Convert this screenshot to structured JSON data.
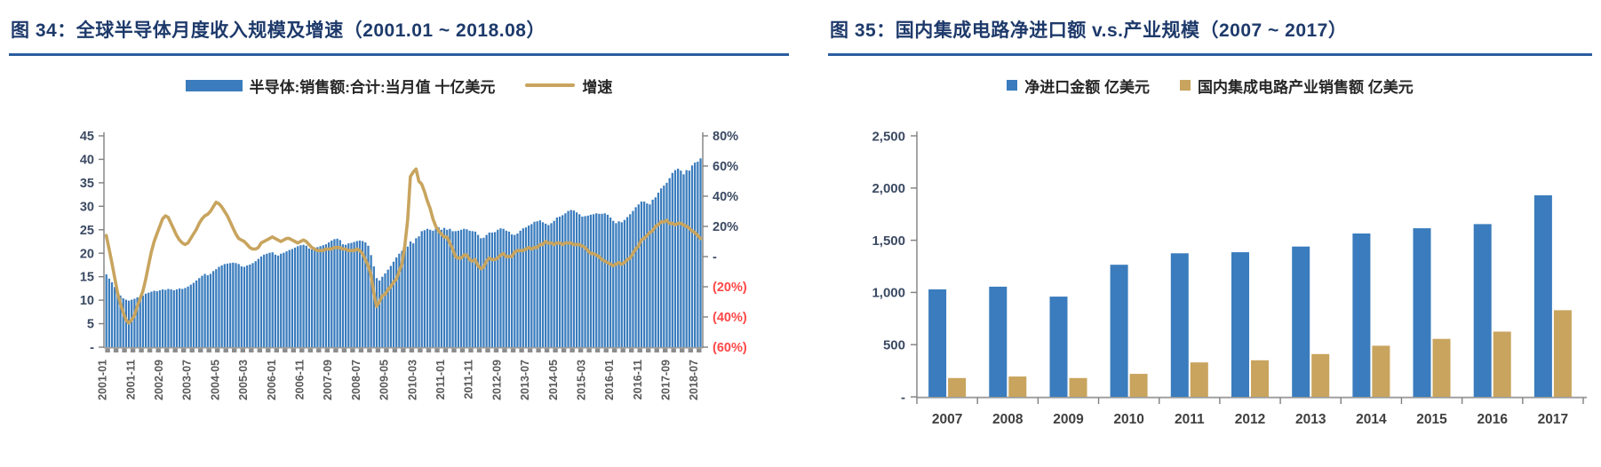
{
  "colors": {
    "title_navy": "#1E3A6B",
    "underline_blue": "#2A5DA0",
    "bar_blue": "#3A7CBD",
    "line_tan": "#C8A45E",
    "axis_gray": "#7F7F7F",
    "tick_label_gray": "#595959",
    "value_label_navy": "#3B4A63",
    "negative_red": "#FF4747",
    "legend_text": "#262626"
  },
  "chart_data": [
    {
      "type": "combo-bar-line",
      "title": "图 34：全球半导体月度收入规模及增速（2001.01 ~ 2018.08）",
      "x_start": "2001-01",
      "x_end": "2018-08",
      "x_tick_interval_months": 10,
      "x_tick_labels": [
        "2001-01",
        "2001-11",
        "2002-09",
        "2003-07",
        "2004-05",
        "2005-03",
        "2006-01",
        "2006-11",
        "2007-09",
        "2008-07",
        "2009-05",
        "2010-03",
        "2011-01",
        "2011-11",
        "2012-09",
        "2013-07",
        "2014-05",
        "2015-03",
        "2016-01",
        "2016-11",
        "2017-09",
        "2018-07"
      ],
      "left_axis": {
        "title": "",
        "min": 0,
        "max": 45,
        "tick_step": 5,
        "tick_labels": [
          "45",
          "40",
          "35",
          "30",
          "25",
          "20",
          "15",
          "10",
          "5",
          "-"
        ]
      },
      "right_axis": {
        "title": "",
        "min": -60,
        "max": 80,
        "tick_step": 20,
        "tick_labels": [
          "80%",
          "60%",
          "40%",
          "20%",
          "-",
          "(20%)",
          "(40%)",
          "(60%)"
        ]
      },
      "series": [
        {
          "name": "半导体:销售额:合计:当月值 十亿美元",
          "type": "bar",
          "axis": "left",
          "color": "#3A7CBD",
          "values": [
            15.5,
            14.6,
            13.8,
            12.8,
            11.8,
            11.0,
            10.4,
            10.1,
            9.9,
            10.1,
            10.3,
            10.6,
            10.8,
            11.0,
            11.4,
            11.6,
            11.8,
            12.0,
            11.9,
            12.1,
            12.3,
            12.2,
            12.4,
            12.3,
            12.1,
            12.3,
            12.5,
            12.4,
            12.6,
            12.9,
            13.3,
            13.7,
            14.2,
            14.7,
            15.2,
            15.6,
            15.3,
            15.6,
            16.2,
            16.6,
            17.1,
            17.4,
            17.7,
            17.8,
            17.9,
            18.0,
            17.9,
            17.7,
            17.2,
            17.1,
            17.4,
            17.6,
            17.9,
            18.3,
            18.8,
            19.3,
            19.7,
            19.9,
            20.1,
            20.2,
            19.7,
            19.5,
            19.9,
            20.1,
            20.4,
            20.7,
            20.9,
            21.2,
            21.5,
            21.7,
            21.8,
            21.6,
            21.0,
            20.8,
            21.2,
            21.3,
            21.5,
            21.7,
            21.9,
            22.3,
            22.7,
            23.0,
            23.1,
            22.8,
            21.9,
            21.8,
            22.1,
            22.2,
            22.4,
            22.6,
            22.7,
            22.6,
            22.3,
            21.6,
            19.6,
            17.2,
            14.7,
            14.2,
            15.0,
            15.7,
            16.5,
            17.3,
            18.2,
            19.1,
            19.9,
            20.5,
            21.0,
            21.4,
            22.5,
            22.1,
            23.2,
            23.6,
            24.7,
            24.9,
            25.2,
            25.0,
            24.8,
            25.2,
            25.5,
            25.0,
            25.4,
            25.0,
            25.2,
            24.7,
            24.7,
            24.8,
            25.0,
            25.2,
            25.1,
            24.8,
            24.7,
            24.6,
            23.9,
            23.2,
            23.3,
            23.9,
            24.4,
            24.4,
            24.5,
            25.0,
            25.3,
            25.2,
            24.8,
            24.6,
            24.0,
            23.9,
            24.2,
            24.8,
            25.3,
            25.5,
            25.9,
            26.2,
            26.7,
            26.8,
            27.0,
            26.6,
            26.3,
            26.0,
            26.4,
            26.9,
            27.6,
            27.8,
            28.1,
            28.5,
            29.0,
            29.2,
            29.1,
            28.7,
            28.3,
            27.8,
            27.9,
            28.0,
            28.2,
            28.3,
            28.5,
            28.4,
            28.4,
            28.5,
            28.2,
            27.6,
            26.9,
            26.4,
            26.8,
            26.6,
            27.1,
            27.7,
            28.3,
            29.0,
            29.8,
            30.4,
            31.0,
            31.0,
            30.6,
            30.4,
            31.4,
            31.9,
            32.9,
            33.8,
            34.4,
            35.0,
            36.0,
            37.1,
            37.7,
            38.0,
            37.6,
            36.8,
            37.7,
            37.6,
            38.7,
            39.3,
            39.5,
            40.2
          ]
        },
        {
          "name": "增速",
          "type": "line",
          "axis": "right",
          "color": "#C8A45E",
          "unit": "%",
          "values": [
            14,
            5,
            -4,
            -14,
            -24,
            -31,
            -37,
            -42,
            -44,
            -42,
            -39,
            -33,
            -28,
            -23,
            -15,
            -6,
            3,
            10,
            15,
            20,
            25,
            27,
            26,
            22,
            18,
            14,
            11,
            9,
            8,
            9,
            12,
            15,
            18,
            22,
            25,
            27,
            28,
            30,
            33,
            36,
            35,
            33,
            30,
            27,
            23,
            19,
            15,
            12,
            11,
            10,
            8,
            6,
            5,
            5,
            6,
            9,
            10,
            11,
            12,
            13,
            12,
            11,
            10,
            11,
            12,
            12,
            11,
            10,
            9,
            10,
            11,
            10,
            8,
            6,
            5,
            4,
            4,
            4,
            5,
            5,
            5,
            6,
            6,
            6,
            5,
            5,
            4,
            4,
            4,
            5,
            4,
            2,
            -2,
            -6,
            -12,
            -24,
            -33,
            -30,
            -26,
            -25,
            -22,
            -20,
            -17,
            -15,
            -10,
            -5,
            7,
            24,
            53,
            56,
            58,
            50,
            48,
            43,
            37,
            32,
            25,
            20,
            17,
            15,
            13,
            13,
            9,
            5,
            0,
            -1,
            -1,
            1,
            1,
            -2,
            -3,
            -2,
            -6,
            -8,
            -7,
            -3,
            -1,
            -2,
            -2,
            -1,
            1,
            2,
            0,
            0,
            0,
            3,
            4,
            4,
            4,
            5,
            6,
            5,
            6,
            6,
            8,
            8,
            10,
            9,
            9,
            8,
            9,
            9,
            8,
            9,
            9,
            9,
            8,
            8,
            8,
            7,
            6,
            4,
            2,
            2,
            1,
            0,
            -2,
            -3,
            -4,
            -5,
            -6,
            -5,
            -4,
            -5,
            -4,
            -2,
            -1,
            2,
            5,
            7,
            11,
            12,
            14,
            16,
            17,
            20,
            21,
            23,
            23,
            24,
            22,
            22,
            21,
            22,
            22,
            21,
            20,
            19,
            17,
            16,
            14,
            12
          ]
        }
      ]
    },
    {
      "type": "bar",
      "title": "图 35：国内集成电路净进口额 v.s.产业规模（2007 ~ 2017）",
      "categories": [
        "2007",
        "2008",
        "2009",
        "2010",
        "2011",
        "2012",
        "2013",
        "2014",
        "2015",
        "2016",
        "2017"
      ],
      "y_axis": {
        "min": 0,
        "max": 2500,
        "tick_step": 500,
        "tick_labels": [
          "2,500",
          "2,000",
          "1,500",
          "1,000",
          "500",
          "-"
        ]
      },
      "series": [
        {
          "name": "净进口金额 亿美元",
          "color": "#3A7CBD",
          "values": [
            1030,
            1055,
            960,
            1265,
            1375,
            1385,
            1440,
            1565,
            1615,
            1655,
            1930
          ]
        },
        {
          "name": "国内集成电路产业销售额 亿美元",
          "color": "#C8A45E",
          "values": [
            180,
            195,
            180,
            220,
            330,
            350,
            410,
            490,
            555,
            625,
            830
          ]
        }
      ]
    }
  ]
}
